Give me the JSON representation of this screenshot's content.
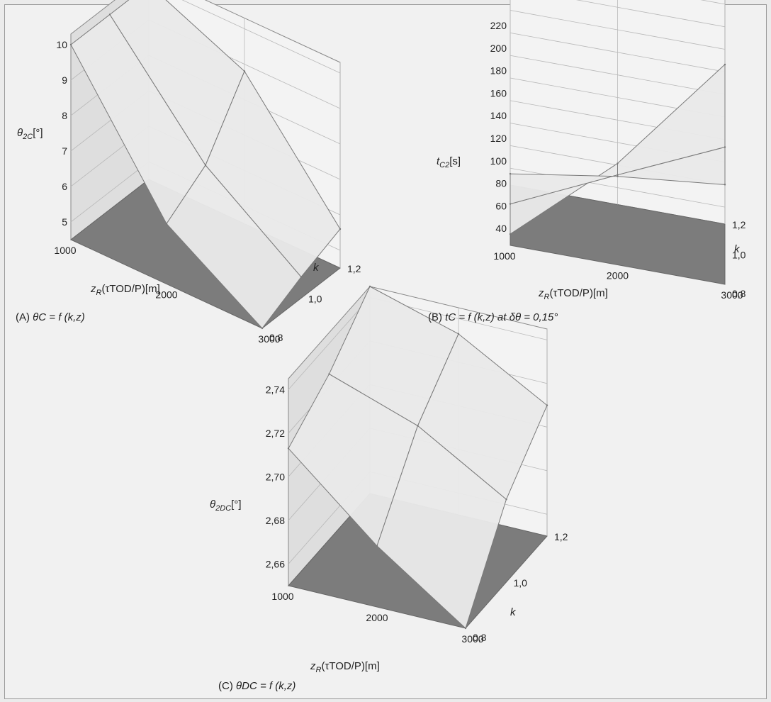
{
  "figure": {
    "panels": [
      {
        "id": "A",
        "letter": "(A)",
        "formula": "θC = f (k,z)"
      },
      {
        "id": "B",
        "letter": "(B)",
        "formula": "tC = f (k,z) at δθ = 0,15°"
      },
      {
        "id": "C",
        "letter": "(C)",
        "formula": "θDC = f (k,z)"
      }
    ]
  },
  "colors": {
    "surface": "#e9e9e9",
    "wall": "#dedede",
    "floor": "#7c7c7c",
    "edge": "#888888"
  },
  "chart_data": [
    {
      "type": "surface",
      "panel": "A",
      "zlabel": "θ2C[°]",
      "xlabel": "zR(τTOD/P)[m]",
      "ylabel": "k",
      "x": [
        1000,
        2000,
        3000
      ],
      "y": [
        0.8,
        1.0,
        1.2
      ],
      "z": [
        [
          10,
          6.2,
          4.5
        ],
        [
          10,
          7,
          5.1
        ],
        [
          10,
          8.8,
          5.6
        ]
      ],
      "zlim": [
        4.5,
        10.3
      ],
      "x_ticks": [
        "1000",
        "2000",
        "3000"
      ],
      "y_ticks": [
        "0,8",
        "1,0",
        "1,2"
      ],
      "z_ticks": [
        "5",
        "6",
        "7",
        "8",
        "9",
        "10"
      ]
    },
    {
      "type": "surface",
      "panel": "B",
      "zlabel": "tC2[s]",
      "xlabel": "zR(τTOD/P)[m]",
      "ylabel": "k",
      "x": [
        1000,
        2000,
        3000
      ],
      "y": [
        0.8,
        1.0,
        1.2
      ],
      "z": [
        [
          35,
          115,
          220
        ],
        [
          35,
          78,
          120
        ],
        [
          35,
          50,
          60
        ]
      ],
      "zlim": [
        25,
        225
      ],
      "x_ticks": [
        "1000",
        "2000",
        "3000"
      ],
      "y_ticks": [
        "0,8",
        "1,0",
        "1,2"
      ],
      "z_ticks": [
        "40",
        "60",
        "80",
        "100",
        "120",
        "140",
        "160",
        "180",
        "200",
        "220"
      ]
    },
    {
      "type": "surface",
      "panel": "C",
      "zlabel": "θ2DC[°]",
      "xlabel": "zR(τTOD/P)[m]",
      "ylabel": "k",
      "x": [
        1000,
        2000,
        3000
      ],
      "y": [
        0.8,
        1.0,
        1.2
      ],
      "z": [
        [
          2.713,
          2.678,
          2.65
        ],
        [
          2.726,
          2.712,
          2.688
        ],
        [
          2.745,
          2.733,
          2.71
        ]
      ],
      "zlim": [
        2.65,
        2.745
      ],
      "x_ticks": [
        "1000",
        "2000",
        "3000"
      ],
      "y_ticks": [
        "0,8",
        "1,0",
        "1,2"
      ],
      "z_ticks": [
        "2,66",
        "2,68",
        "2,70",
        "2,72",
        "2,74"
      ]
    }
  ]
}
